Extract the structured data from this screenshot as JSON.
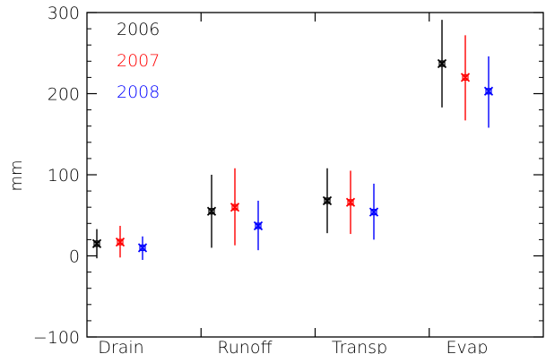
{
  "chart_data": {
    "type": "scatter",
    "title": "",
    "xlabel": "",
    "ylabel": "mm",
    "ylim": [
      -100,
      300
    ],
    "yticks": [
      -100,
      0,
      100,
      200,
      300
    ],
    "categories": [
      "Drain",
      "Runoff",
      "Transp",
      "Evap"
    ],
    "legend_placement": "top-left",
    "grid": false,
    "series": [
      {
        "name": "2006",
        "color": "#000000",
        "points": [
          {
            "category": "Drain",
            "value": 15,
            "low": -3,
            "high": 33
          },
          {
            "category": "Runoff",
            "value": 55,
            "low": 10,
            "high": 100
          },
          {
            "category": "Transp",
            "value": 68,
            "low": 28,
            "high": 108
          },
          {
            "category": "Evap",
            "value": 237,
            "low": 183,
            "high": 291
          }
        ]
      },
      {
        "name": "2007",
        "color": "#ff0000",
        "points": [
          {
            "category": "Drain",
            "value": 17,
            "low": -2,
            "high": 37
          },
          {
            "category": "Runoff",
            "value": 60,
            "low": 13,
            "high": 108
          },
          {
            "category": "Transp",
            "value": 66,
            "low": 27,
            "high": 105
          },
          {
            "category": "Evap",
            "value": 220,
            "low": 167,
            "high": 272
          }
        ]
      },
      {
        "name": "2008",
        "color": "#0000ff",
        "points": [
          {
            "category": "Drain",
            "value": 10,
            "low": -5,
            "high": 24
          },
          {
            "category": "Runoff",
            "value": 37,
            "low": 7,
            "high": 68
          },
          {
            "category": "Transp",
            "value": 54,
            "low": 20,
            "high": 89
          },
          {
            "category": "Evap",
            "value": 203,
            "low": 158,
            "high": 246
          }
        ]
      }
    ]
  }
}
